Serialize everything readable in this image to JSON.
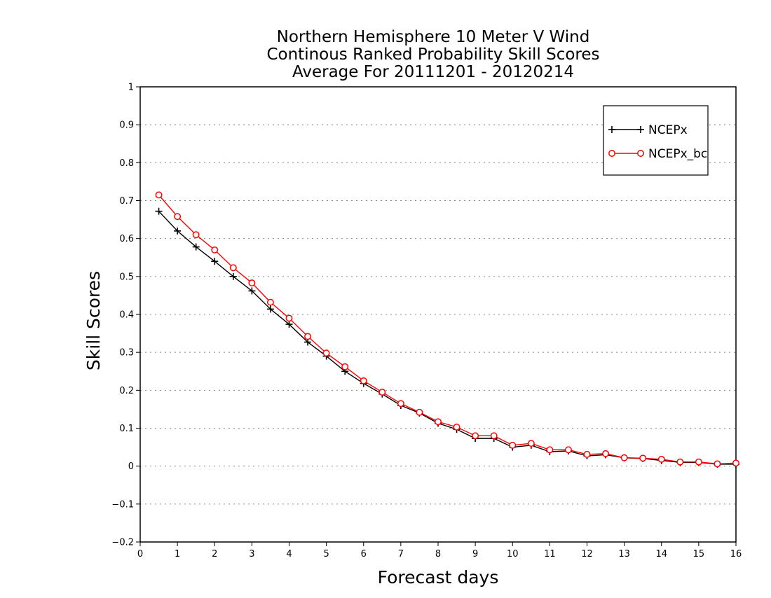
{
  "chart_data": {
    "type": "line",
    "title": [
      "Northern Hemisphere 10 Meter V Wind",
      "Continous Ranked Probability Skill Scores",
      "Average For 20111201 - 20120214"
    ],
    "xlabel": "Forecast days",
    "ylabel": "Skill Scores",
    "xlim": [
      0,
      16
    ],
    "ylim": [
      -0.2,
      1
    ],
    "x_ticks": [
      0,
      1,
      2,
      3,
      4,
      5,
      6,
      7,
      8,
      9,
      10,
      11,
      12,
      13,
      14,
      15,
      16
    ],
    "y_ticks": [
      -0.2,
      -0.1,
      0,
      0.1,
      0.2,
      0.3,
      0.4,
      0.5,
      0.6,
      0.7,
      0.8,
      0.9,
      1
    ],
    "x_tick_labels": [
      "0",
      "1",
      "2",
      "3",
      "4",
      "5",
      "6",
      "7",
      "8",
      "9",
      "10",
      "11",
      "12",
      "13",
      "14",
      "15",
      "16"
    ],
    "y_tick_labels": [
      "−0.2",
      "−0.1",
      "0",
      "0.1",
      "0.2",
      "0.3",
      "0.4",
      "0.5",
      "0.6",
      "0.7",
      "0.8",
      "0.9",
      "1"
    ],
    "grid": "horizontal dotted",
    "legend_position": "top-right",
    "x": [
      0.5,
      1,
      1.5,
      2,
      2.5,
      3,
      3.5,
      4,
      4.5,
      5,
      5.5,
      6,
      6.5,
      7,
      7.5,
      8,
      8.5,
      9,
      9.5,
      10,
      10.5,
      11,
      11.5,
      12,
      12.5,
      13,
      13.5,
      14,
      14.5,
      15,
      15.5,
      16
    ],
    "series": [
      {
        "name": "NCEPx",
        "color": "#000000",
        "marker": "plus",
        "values": [
          0.672,
          0.62,
          0.578,
          0.54,
          0.5,
          0.462,
          0.414,
          0.374,
          0.327,
          0.29,
          0.25,
          0.218,
          0.19,
          0.16,
          0.14,
          0.113,
          0.097,
          0.073,
          0.073,
          0.05,
          0.055,
          0.038,
          0.04,
          0.027,
          0.03,
          0.022,
          0.02,
          0.015,
          0.01,
          0.01,
          0.005,
          0.005
        ]
      },
      {
        "name": "NCEPx_bc",
        "color": "#ff0000",
        "marker": "circle",
        "values": [
          0.715,
          0.658,
          0.61,
          0.57,
          0.523,
          0.483,
          0.432,
          0.39,
          0.342,
          0.298,
          0.262,
          0.225,
          0.195,
          0.165,
          0.142,
          0.117,
          0.103,
          0.08,
          0.08,
          0.055,
          0.06,
          0.043,
          0.043,
          0.031,
          0.033,
          0.022,
          0.021,
          0.018,
          0.011,
          0.011,
          0.006,
          0.008
        ]
      }
    ]
  }
}
